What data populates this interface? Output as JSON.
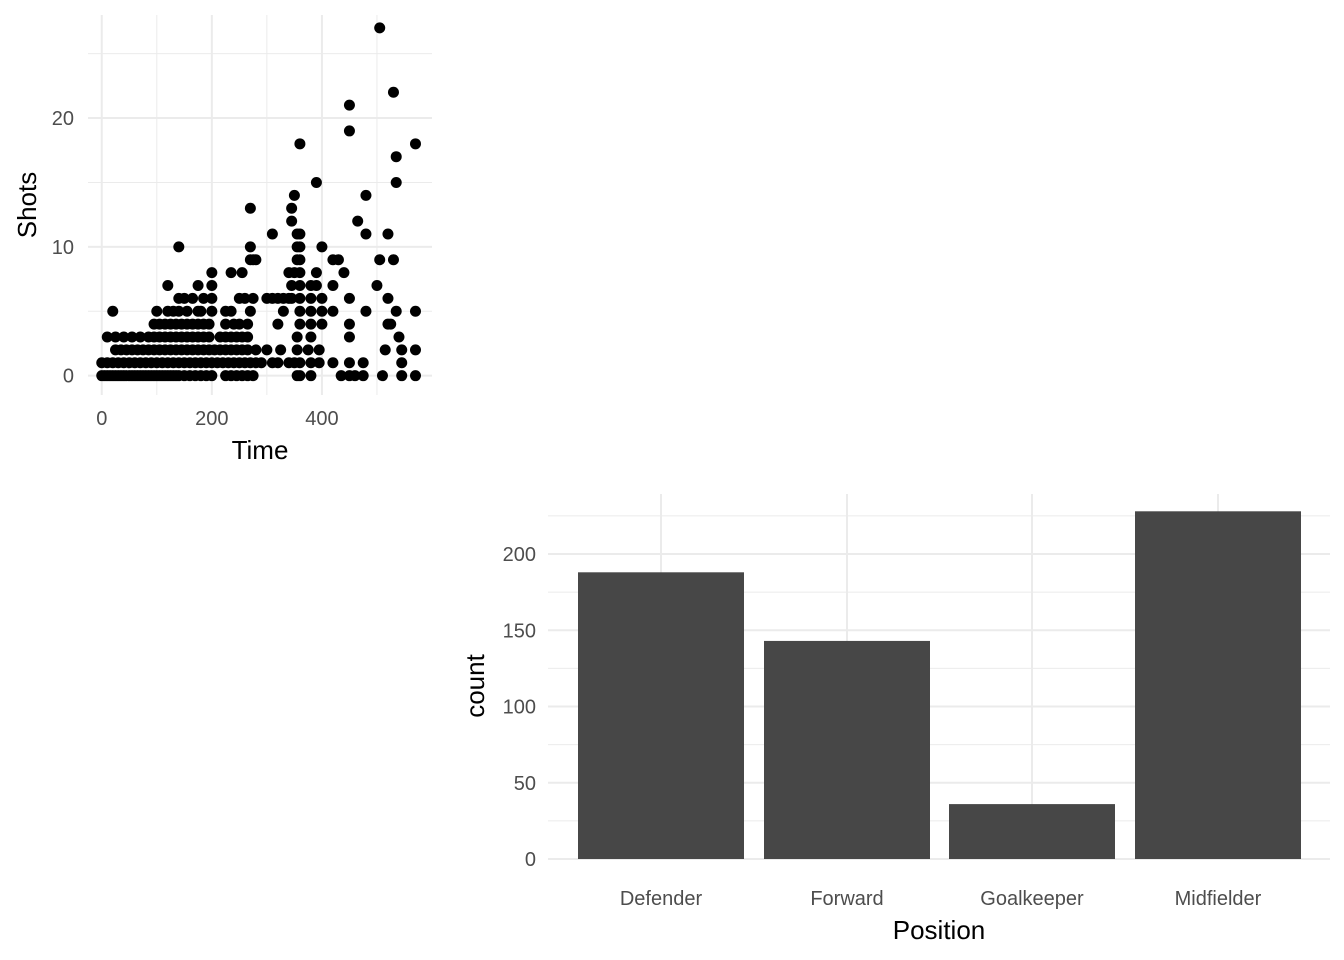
{
  "chart_data": [
    {
      "type": "scatter",
      "xlabel": "Time",
      "ylabel": "Shots",
      "xlim": [
        -25,
        600
      ],
      "ylim": [
        -1.5,
        28
      ],
      "x_ticks": [
        0,
        200,
        400
      ],
      "y_ticks": [
        0,
        10,
        20
      ],
      "x_tick_labels": [
        "0",
        "200",
        "400"
      ],
      "y_tick_labels": [
        "0",
        "10",
        "20"
      ],
      "grid": true,
      "point_color": "#000000",
      "points": [
        [
          0,
          0
        ],
        [
          5,
          0
        ],
        [
          10,
          0
        ],
        [
          15,
          0
        ],
        [
          20,
          0
        ],
        [
          25,
          0
        ],
        [
          30,
          0
        ],
        [
          35,
          0
        ],
        [
          40,
          0
        ],
        [
          45,
          0
        ],
        [
          50,
          0
        ],
        [
          55,
          0
        ],
        [
          60,
          0
        ],
        [
          65,
          0
        ],
        [
          70,
          0
        ],
        [
          75,
          0
        ],
        [
          80,
          0
        ],
        [
          85,
          0
        ],
        [
          90,
          0
        ],
        [
          95,
          0
        ],
        [
          100,
          0
        ],
        [
          105,
          0
        ],
        [
          110,
          0
        ],
        [
          115,
          0
        ],
        [
          120,
          0
        ],
        [
          125,
          0
        ],
        [
          130,
          0
        ],
        [
          135,
          0
        ],
        [
          140,
          0
        ],
        [
          150,
          0
        ],
        [
          160,
          0
        ],
        [
          170,
          0
        ],
        [
          180,
          0
        ],
        [
          190,
          0
        ],
        [
          200,
          0
        ],
        [
          225,
          0
        ],
        [
          235,
          0
        ],
        [
          245,
          0
        ],
        [
          255,
          0
        ],
        [
          265,
          0
        ],
        [
          275,
          0
        ],
        [
          355,
          0
        ],
        [
          360,
          0
        ],
        [
          380,
          0
        ],
        [
          435,
          0
        ],
        [
          450,
          0
        ],
        [
          460,
          0
        ],
        [
          475,
          0
        ],
        [
          510,
          0
        ],
        [
          545,
          0
        ],
        [
          570,
          0
        ],
        [
          0,
          1
        ],
        [
          10,
          1
        ],
        [
          20,
          1
        ],
        [
          30,
          1
        ],
        [
          40,
          1
        ],
        [
          50,
          1
        ],
        [
          60,
          1
        ],
        [
          70,
          1
        ],
        [
          80,
          1
        ],
        [
          90,
          1
        ],
        [
          100,
          1
        ],
        [
          110,
          1
        ],
        [
          120,
          1
        ],
        [
          130,
          1
        ],
        [
          140,
          1
        ],
        [
          150,
          1
        ],
        [
          160,
          1
        ],
        [
          170,
          1
        ],
        [
          180,
          1
        ],
        [
          190,
          1
        ],
        [
          200,
          1
        ],
        [
          210,
          1
        ],
        [
          220,
          1
        ],
        [
          230,
          1
        ],
        [
          240,
          1
        ],
        [
          250,
          1
        ],
        [
          260,
          1
        ],
        [
          270,
          1
        ],
        [
          280,
          1
        ],
        [
          290,
          1
        ],
        [
          310,
          1
        ],
        [
          320,
          1
        ],
        [
          340,
          1
        ],
        [
          350,
          1
        ],
        [
          360,
          1
        ],
        [
          380,
          1
        ],
        [
          395,
          1
        ],
        [
          420,
          1
        ],
        [
          450,
          1
        ],
        [
          475,
          1
        ],
        [
          545,
          1
        ],
        [
          25,
          2
        ],
        [
          35,
          2
        ],
        [
          45,
          2
        ],
        [
          55,
          2
        ],
        [
          65,
          2
        ],
        [
          75,
          2
        ],
        [
          85,
          2
        ],
        [
          95,
          2
        ],
        [
          105,
          2
        ],
        [
          115,
          2
        ],
        [
          125,
          2
        ],
        [
          135,
          2
        ],
        [
          145,
          2
        ],
        [
          155,
          2
        ],
        [
          165,
          2
        ],
        [
          175,
          2
        ],
        [
          185,
          2
        ],
        [
          195,
          2
        ],
        [
          205,
          2
        ],
        [
          215,
          2
        ],
        [
          225,
          2
        ],
        [
          235,
          2
        ],
        [
          245,
          2
        ],
        [
          255,
          2
        ],
        [
          265,
          2
        ],
        [
          280,
          2
        ],
        [
          300,
          2
        ],
        [
          325,
          2
        ],
        [
          355,
          2
        ],
        [
          375,
          2
        ],
        [
          395,
          2
        ],
        [
          515,
          2
        ],
        [
          545,
          2
        ],
        [
          570,
          2
        ],
        [
          10,
          3
        ],
        [
          25,
          3
        ],
        [
          40,
          3
        ],
        [
          55,
          3
        ],
        [
          70,
          3
        ],
        [
          85,
          3
        ],
        [
          95,
          3
        ],
        [
          105,
          3
        ],
        [
          115,
          3
        ],
        [
          125,
          3
        ],
        [
          135,
          3
        ],
        [
          145,
          3
        ],
        [
          155,
          3
        ],
        [
          165,
          3
        ],
        [
          175,
          3
        ],
        [
          185,
          3
        ],
        [
          195,
          3
        ],
        [
          215,
          3
        ],
        [
          225,
          3
        ],
        [
          235,
          3
        ],
        [
          245,
          3
        ],
        [
          255,
          3
        ],
        [
          265,
          3
        ],
        [
          355,
          3
        ],
        [
          380,
          3
        ],
        [
          450,
          3
        ],
        [
          540,
          3
        ],
        [
          20,
          5
        ],
        [
          95,
          4
        ],
        [
          105,
          4
        ],
        [
          115,
          4
        ],
        [
          125,
          4
        ],
        [
          135,
          4
        ],
        [
          145,
          4
        ],
        [
          155,
          4
        ],
        [
          165,
          4
        ],
        [
          175,
          4
        ],
        [
          185,
          4
        ],
        [
          195,
          4
        ],
        [
          225,
          4
        ],
        [
          240,
          4
        ],
        [
          250,
          4
        ],
        [
          265,
          4
        ],
        [
          320,
          4
        ],
        [
          360,
          4
        ],
        [
          380,
          4
        ],
        [
          400,
          4
        ],
        [
          450,
          4
        ],
        [
          520,
          4
        ],
        [
          525,
          4
        ],
        [
          100,
          5
        ],
        [
          120,
          5
        ],
        [
          130,
          5
        ],
        [
          140,
          5
        ],
        [
          155,
          5
        ],
        [
          175,
          5
        ],
        [
          180,
          5
        ],
        [
          200,
          5
        ],
        [
          225,
          5
        ],
        [
          235,
          5
        ],
        [
          270,
          5
        ],
        [
          330,
          5
        ],
        [
          360,
          5
        ],
        [
          380,
          5
        ],
        [
          400,
          5
        ],
        [
          420,
          5
        ],
        [
          480,
          5
        ],
        [
          535,
          5
        ],
        [
          570,
          5
        ],
        [
          140,
          6
        ],
        [
          150,
          6
        ],
        [
          165,
          6
        ],
        [
          185,
          6
        ],
        [
          200,
          6
        ],
        [
          250,
          6
        ],
        [
          260,
          6
        ],
        [
          275,
          6
        ],
        [
          300,
          6
        ],
        [
          310,
          6
        ],
        [
          320,
          6
        ],
        [
          330,
          6
        ],
        [
          340,
          6
        ],
        [
          345,
          6
        ],
        [
          360,
          6
        ],
        [
          380,
          6
        ],
        [
          400,
          6
        ],
        [
          450,
          6
        ],
        [
          520,
          6
        ],
        [
          120,
          7
        ],
        [
          175,
          7
        ],
        [
          200,
          7
        ],
        [
          345,
          7
        ],
        [
          360,
          7
        ],
        [
          380,
          7
        ],
        [
          390,
          7
        ],
        [
          420,
          7
        ],
        [
          500,
          7
        ],
        [
          200,
          8
        ],
        [
          235,
          8
        ],
        [
          255,
          8
        ],
        [
          340,
          8
        ],
        [
          350,
          8
        ],
        [
          360,
          8
        ],
        [
          390,
          8
        ],
        [
          440,
          8
        ],
        [
          270,
          9
        ],
        [
          275,
          9
        ],
        [
          280,
          9
        ],
        [
          355,
          9
        ],
        [
          360,
          9
        ],
        [
          420,
          9
        ],
        [
          430,
          9
        ],
        [
          505,
          9
        ],
        [
          530,
          9
        ],
        [
          140,
          10
        ],
        [
          270,
          10
        ],
        [
          355,
          10
        ],
        [
          360,
          10
        ],
        [
          400,
          10
        ],
        [
          310,
          11
        ],
        [
          355,
          11
        ],
        [
          360,
          11
        ],
        [
          480,
          11
        ],
        [
          520,
          11
        ],
        [
          345,
          12
        ],
        [
          465,
          12
        ],
        [
          270,
          13
        ],
        [
          345,
          13
        ],
        [
          350,
          14
        ],
        [
          480,
          14
        ],
        [
          390,
          15
        ],
        [
          535,
          15
        ],
        [
          535,
          17
        ],
        [
          360,
          18
        ],
        [
          570,
          18
        ],
        [
          450,
          19
        ],
        [
          450,
          21
        ],
        [
          530,
          22
        ],
        [
          505,
          27
        ]
      ]
    },
    {
      "type": "bar",
      "xlabel": "Position",
      "ylabel": "count",
      "categories": [
        "Defender",
        "Forward",
        "Goalkeeper",
        "Midfielder"
      ],
      "values": [
        188,
        143,
        36,
        228
      ],
      "ylim": [
        0,
        240
      ],
      "y_ticks": [
        0,
        50,
        100,
        150,
        200
      ],
      "y_tick_labels": [
        "0",
        "50",
        "100",
        "150",
        "200"
      ],
      "grid": true,
      "bar_color": "#474747"
    }
  ]
}
